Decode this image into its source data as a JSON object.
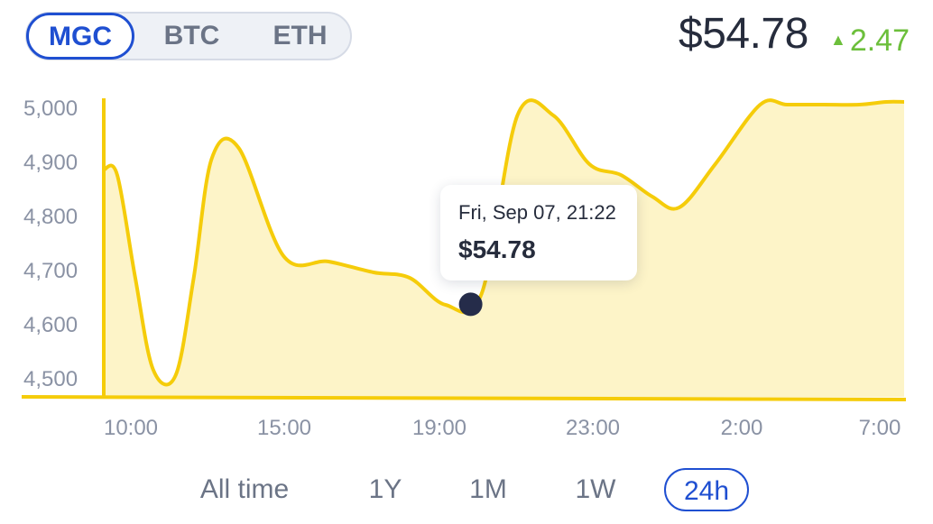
{
  "coin_tabs": [
    {
      "label": "MGC",
      "active": true
    },
    {
      "label": "BTC",
      "active": false
    },
    {
      "label": "ETH",
      "active": false
    }
  ],
  "price": "$54.78",
  "change": {
    "value": "2.47",
    "direction": "up",
    "color": "#6cbf3b"
  },
  "chart_data": {
    "type": "area",
    "title": "",
    "xlabel": "",
    "ylabel": "",
    "yticks": [
      "4,500",
      "4,600",
      "4,700",
      "4,800",
      "4,900",
      "5,000"
    ],
    "xticks": [
      "10:00",
      "15:00",
      "19:00",
      "23:00",
      "2:00",
      "7:00"
    ],
    "ylim": [
      4500,
      5000
    ],
    "grid": false,
    "series": [
      {
        "color": "#f5cc0a",
        "fill": "#fdf4c8",
        "x": [
          0,
          0.15,
          0.35,
          0.55,
          0.8,
          1.0,
          1.2,
          1.5,
          2.0,
          2.5,
          3.0,
          3.4,
          3.8,
          4.2,
          4.6,
          5.0,
          5.4,
          5.75,
          6.1,
          6.4,
          6.8,
          7.3,
          7.6,
          8.0,
          8.4,
          8.7,
          8.9
        ],
        "y": [
          4890,
          4880,
          4690,
          4520,
          4510,
          4690,
          4910,
          4930,
          4730,
          4720,
          4700,
          4690,
          4640,
          4660,
          4990,
          4990,
          4900,
          4880,
          4840,
          4820,
          4900,
          5010,
          5010,
          5010,
          5010,
          5015,
          5015
        ]
      }
    ],
    "highlight": {
      "x": 4.08,
      "y": 4641,
      "label": "Fri, Sep 07, 21:22",
      "value": "$54.78"
    }
  },
  "ranges": [
    {
      "label": "All time",
      "active": false
    },
    {
      "label": "1Y",
      "active": false
    },
    {
      "label": "1M",
      "active": false
    },
    {
      "label": "1W",
      "active": false
    },
    {
      "label": "24h",
      "active": true
    }
  ]
}
